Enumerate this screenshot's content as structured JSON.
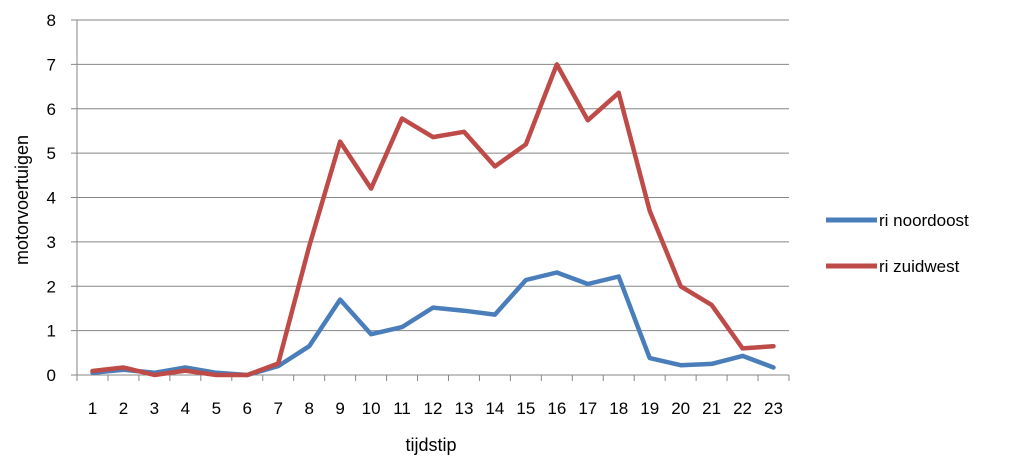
{
  "colors": {
    "series_0": "#4a7ebb",
    "series_1": "#be4b48",
    "grid": "#868686",
    "axis": "#868686"
  },
  "chart_data": {
    "type": "line",
    "title": "",
    "xlabel": "tijdstip",
    "ylabel": "motorvoertuigen",
    "ylim": [
      0,
      8
    ],
    "yticks": [
      0,
      1,
      2,
      3,
      4,
      5,
      6,
      7,
      8
    ],
    "grid": true,
    "legend_position": "right",
    "categories": [
      "1",
      "2",
      "3",
      "4",
      "5",
      "6",
      "7",
      "8",
      "9",
      "10",
      "11",
      "12",
      "13",
      "14",
      "15",
      "16",
      "17",
      "18",
      "19",
      "20",
      "21",
      "22",
      "23"
    ],
    "series": [
      {
        "name": "ri noordoost",
        "values": [
          0.05,
          0.12,
          0.05,
          0.17,
          0.05,
          0.0,
          0.2,
          0.65,
          1.7,
          0.92,
          1.08,
          1.52,
          1.45,
          1.36,
          2.14,
          2.31,
          2.05,
          2.22,
          0.38,
          0.22,
          0.25,
          0.43,
          0.17
        ]
      },
      {
        "name": "ri zuidwest",
        "values": [
          0.09,
          0.17,
          0.0,
          0.1,
          0.0,
          0.0,
          0.26,
          2.9,
          5.26,
          4.2,
          5.78,
          5.36,
          5.48,
          4.7,
          5.2,
          7.0,
          5.74,
          6.36,
          3.7,
          2.0,
          1.58,
          0.6,
          0.65
        ]
      }
    ]
  }
}
